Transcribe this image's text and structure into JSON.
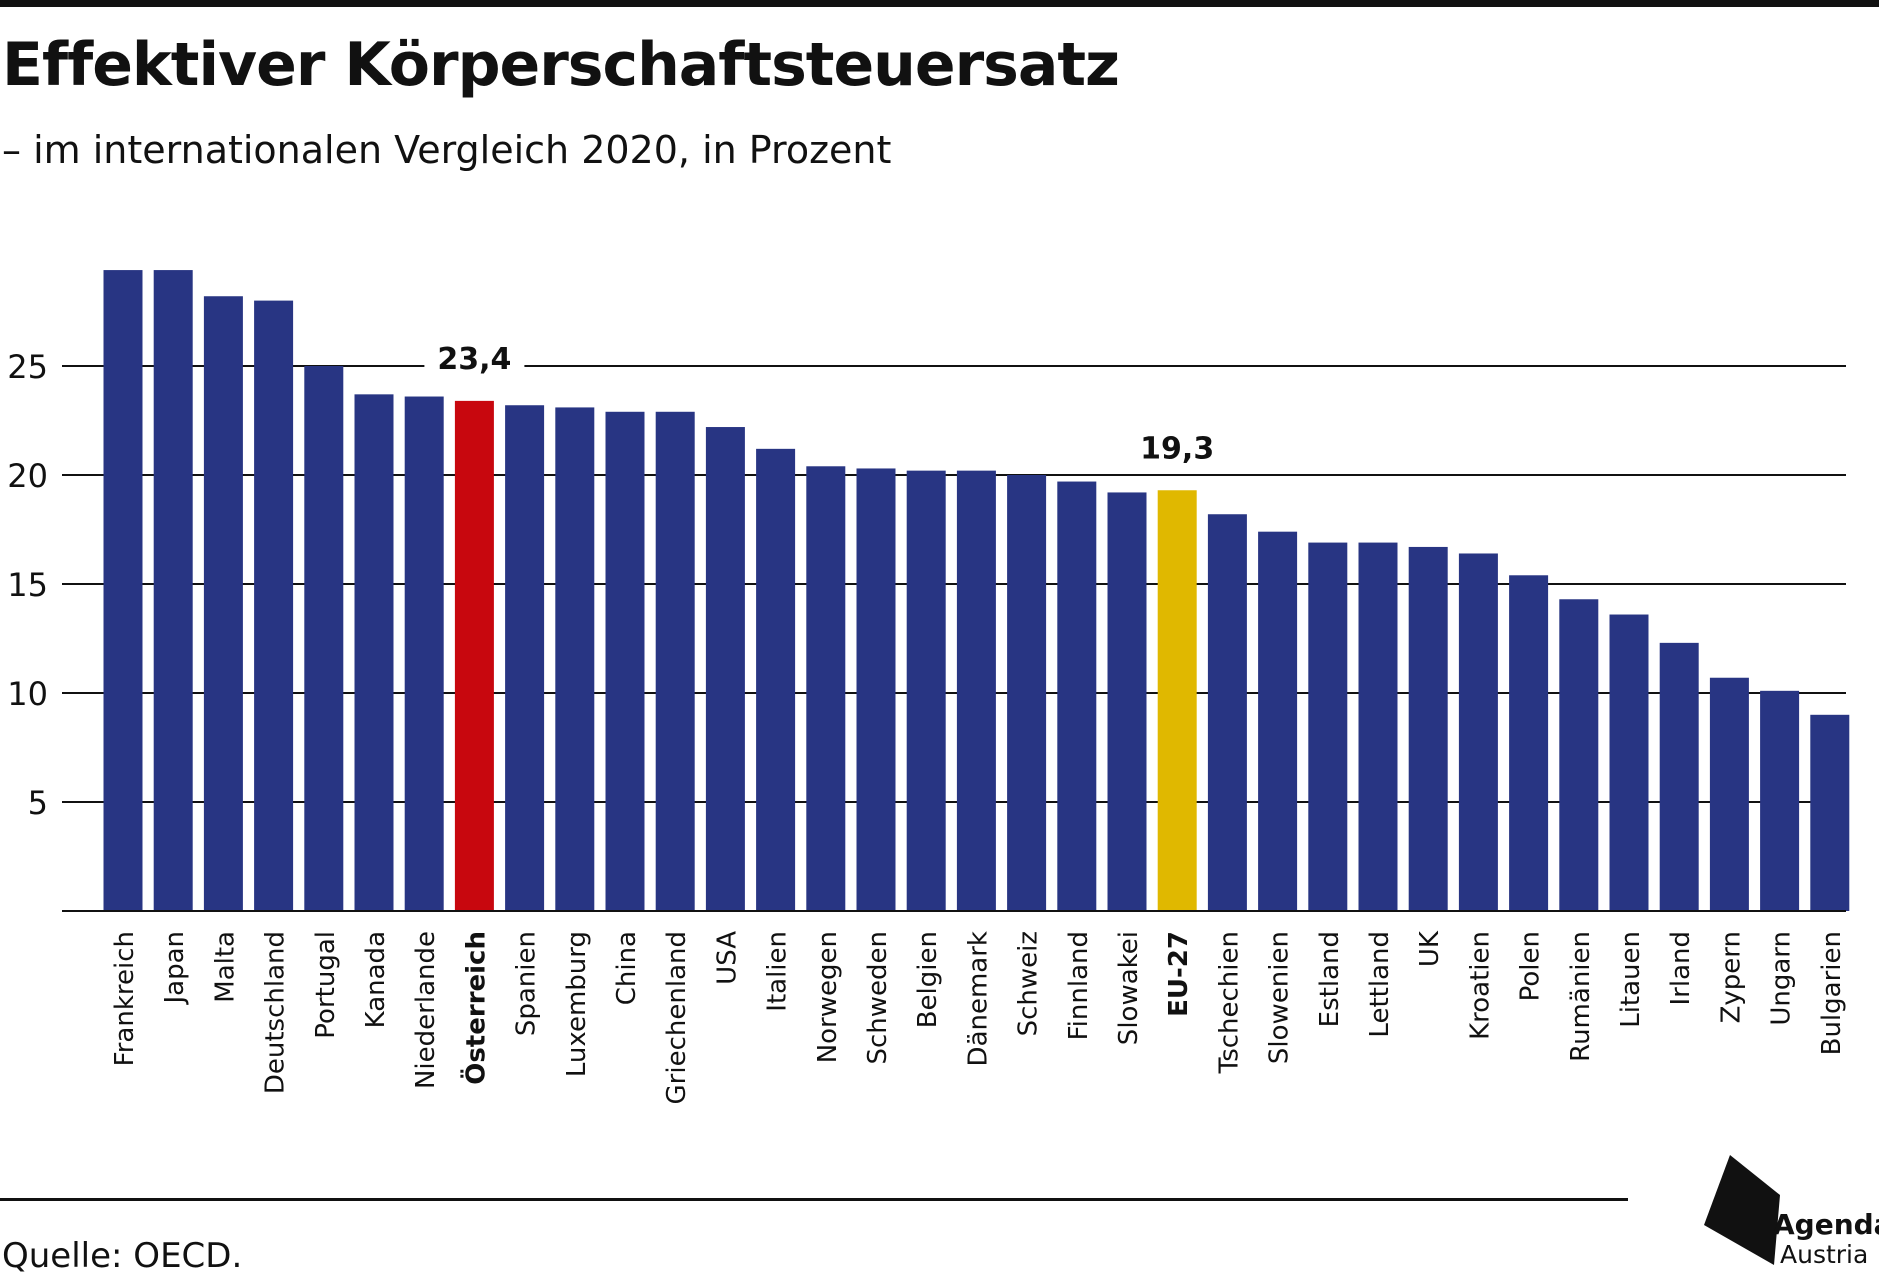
{
  "header": {
    "title": "Effektiver Körperschaftsteuersatz",
    "subtitle": "–  im internationalen Vergleich 2020, in Prozent"
  },
  "footer": {
    "source": "Quelle: OECD."
  },
  "logo": {
    "line1": "Agenda",
    "line2": "Austria"
  },
  "colors": {
    "bar": "#283583",
    "highlight_austria": "#c8070e",
    "highlight_eu": "#e0b800",
    "text": "#111111"
  },
  "chart_data": {
    "type": "bar",
    "title": "Effektiver Körperschaftsteuersatz",
    "subtitle": "–  im internationalen Vergleich 2020, in Prozent",
    "categories": [
      "Frankreich",
      "Japan",
      "Malta",
      "Deutschland",
      "Portugal",
      "Kanada",
      "Niederlande",
      "Österreich",
      "Spanien",
      "Luxemburg",
      "China",
      "Griechenland",
      "USA",
      "Italien",
      "Norwegen",
      "Schweden",
      "Belgien",
      "Dänemark",
      "Schweiz",
      "Finnland",
      "Slowakei",
      "EU-27",
      "Tschechien",
      "Slowenien",
      "Estland",
      "Lettland",
      "UK",
      "Kroatien",
      "Polen",
      "Rumänien",
      "Litauen",
      "Irland",
      "Zypern",
      "Ungarn",
      "Bulgarien"
    ],
    "values": [
      29.4,
      29.4,
      28.2,
      28.0,
      25.0,
      23.7,
      23.6,
      23.4,
      23.2,
      23.1,
      22.9,
      22.9,
      22.2,
      21.2,
      20.4,
      20.3,
      20.2,
      20.2,
      20.0,
      19.7,
      19.2,
      19.3,
      18.2,
      17.4,
      16.9,
      16.9,
      16.7,
      16.4,
      15.4,
      14.3,
      13.6,
      12.3,
      10.7,
      10.1,
      9.0
    ],
    "highlight": {
      "Österreich": "#c8070e",
      "EU-27": "#e0b800"
    },
    "bold_categories": [
      "Österreich",
      "EU-27"
    ],
    "data_labels": [
      {
        "category": "Österreich",
        "text": "23,4"
      },
      {
        "category": "EU-27",
        "text": "19,3"
      }
    ],
    "yticks": [
      5,
      10,
      15,
      20,
      25
    ],
    "ylim": [
      0,
      30
    ],
    "grid": true,
    "xlabel": "",
    "ylabel": ""
  }
}
